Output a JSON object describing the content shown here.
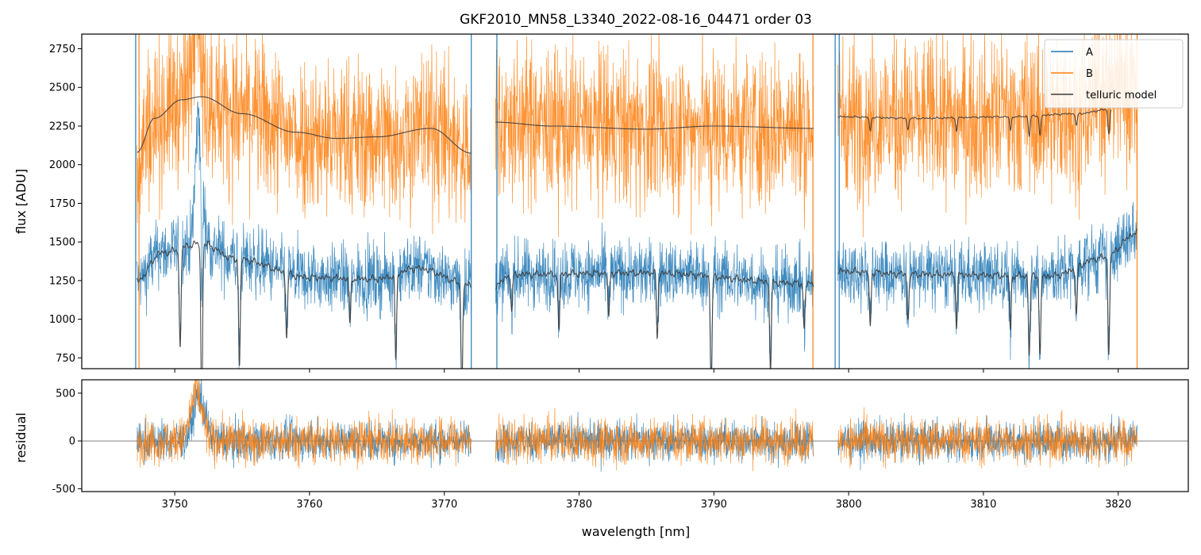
{
  "chart_data": [
    {
      "type": "line",
      "panel": "top",
      "title": "GKF2010_MN58_L3340_2022-08-16_04471  order 03",
      "xlabel": "",
      "ylabel": "flux [ADU]",
      "xlim": [
        3743.1,
        3825.2
      ],
      "ylim": [
        680,
        2845
      ],
      "yticks": [
        750,
        1000,
        1250,
        1500,
        1750,
        2000,
        2250,
        2500,
        2750
      ],
      "xticks": [
        3750,
        3760,
        3770,
        3780,
        3790,
        3800,
        3810,
        3820
      ],
      "segments": [
        [
          3747.2,
          3772.0
        ],
        [
          3773.8,
          3797.4
        ],
        [
          3799.2,
          3821.4
        ]
      ],
      "legend": {
        "position": "top-right",
        "entries": [
          "A",
          "B",
          "telluric model"
        ]
      },
      "series": [
        {
          "name": "A",
          "color": "#1f77b4",
          "level": 1290,
          "noise": 260,
          "emission_peak": {
            "x": 3751.8,
            "height": 950
          }
        },
        {
          "name": "B",
          "color": "#ff7f0e",
          "level": 2230,
          "noise": 620,
          "emission_peak": {
            "x": 3751.6,
            "height": 900
          }
        },
        {
          "name": "telluric model",
          "color": "#3a3a3a",
          "continuum_A": [
            [
              3747.2,
              1250
            ],
            [
              3749.0,
              1430
            ],
            [
              3752.0,
              1490
            ],
            [
              3754.5,
              1390
            ],
            [
              3760,
              1270
            ],
            [
              3765,
              1260
            ],
            [
              3768,
              1330
            ],
            [
              3772.0,
              1220
            ],
            [
              3773.8,
              1220
            ],
            [
              3775,
              1290
            ],
            [
              3785,
              1300
            ],
            [
              3797.4,
              1230
            ],
            [
              3799.2,
              1310
            ],
            [
              3805,
              1290
            ],
            [
              3815,
              1280
            ],
            [
              3819,
              1400
            ],
            [
              3821.4,
              1560
            ]
          ],
          "continuum_B": [
            [
              3747.2,
              2080
            ],
            [
              3748.5,
              2300
            ],
            [
              3750.5,
              2420
            ],
            [
              3752.0,
              2440
            ],
            [
              3755,
              2330
            ],
            [
              3759,
              2210
            ],
            [
              3762,
              2170
            ],
            [
              3765,
              2180
            ],
            [
              3769,
              2235
            ],
            [
              3772.0,
              2075
            ],
            [
              3773.8,
              2275
            ],
            [
              3778,
              2250
            ],
            [
              3785,
              2230
            ],
            [
              3790,
              2250
            ],
            [
              3797.4,
              2235
            ],
            [
              3799.2,
              2310
            ],
            [
              3805,
              2300
            ],
            [
              3812,
              2310
            ],
            [
              3817,
              2330
            ],
            [
              3819.5,
              2360
            ]
          ],
          "absorption_lines": [
            [
              3750.4,
              650
            ],
            [
              3752.0,
              1100
            ],
            [
              3754.8,
              700
            ],
            [
              3758.3,
              420
            ],
            [
              3763.0,
              300
            ],
            [
              3766.4,
              560
            ],
            [
              3771.3,
              700
            ],
            [
              3775.0,
              250
            ],
            [
              3778.5,
              380
            ],
            [
              3782.2,
              300
            ],
            [
              3785.8,
              420
            ],
            [
              3789.8,
              760
            ],
            [
              3794.2,
              580
            ],
            [
              3796.7,
              300
            ],
            [
              3801.6,
              350
            ],
            [
              3804.4,
              300
            ],
            [
              3808.0,
              330
            ],
            [
              3812.0,
              350
            ],
            [
              3813.4,
              520
            ],
            [
              3814.2,
              520
            ],
            [
              3816.9,
              320
            ],
            [
              3819.3,
              650
            ]
          ]
        }
      ]
    },
    {
      "type": "line",
      "panel": "bottom",
      "title": "",
      "xlabel": "wavelength [nm]",
      "ylabel": "residual",
      "xlim": [
        3743.1,
        3825.2
      ],
      "ylim": [
        -530,
        640
      ],
      "yticks": [
        -500,
        0,
        500
      ],
      "xticks": [
        3750,
        3760,
        3770,
        3780,
        3790,
        3800,
        3810,
        3820
      ],
      "xticklabels": [
        "3750",
        "3760",
        "3770",
        "3780",
        "3790",
        "3800",
        "3810",
        "3820"
      ],
      "zero_line": 0,
      "series": [
        {
          "name": "A",
          "color": "#1f77b4",
          "noise": 230,
          "bump": {
            "x": 3751.8,
            "height": 520
          }
        },
        {
          "name": "B",
          "color": "#ff7f0e",
          "noise": 260,
          "bump": {
            "x": 3751.6,
            "height": 560
          }
        }
      ]
    }
  ]
}
